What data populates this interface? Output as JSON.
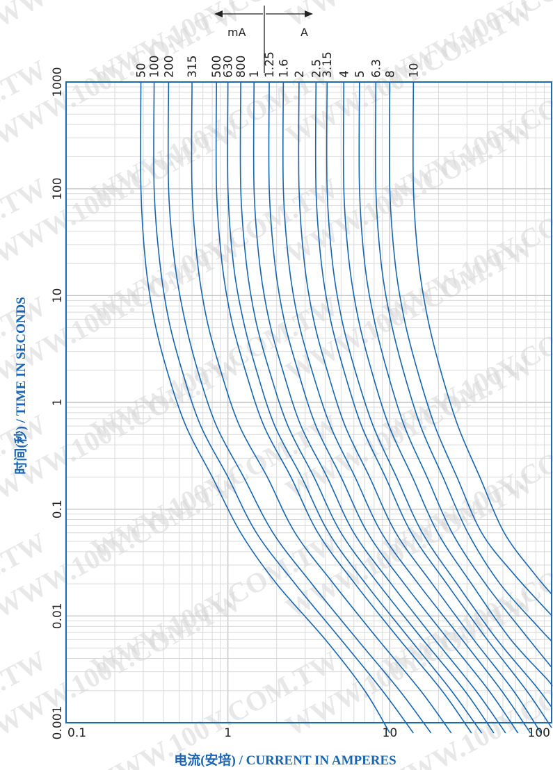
{
  "chart_data": {
    "type": "line",
    "title": "",
    "xlabel": "电流(安培) / CURRENT IN AMPERES",
    "ylabel": "时间(秒) / TIME IN SECONDS",
    "xscale": "log",
    "yscale": "log",
    "xlim": [
      0.1,
      100
    ],
    "ylim": [
      0.001,
      1000
    ],
    "grid": true,
    "x_ticks": [
      "0.1",
      "1",
      "10",
      "100"
    ],
    "y_ticks": [
      "0.001",
      "0.01",
      "0.1",
      "1",
      "10",
      "100",
      "1000"
    ],
    "unit_markers": {
      "left": "mA",
      "right": "A"
    },
    "line_color": "#1565b0",
    "series": [
      {
        "name": "50",
        "points": [
          [
            0.29,
            1000
          ],
          [
            0.29,
            100
          ],
          [
            0.31,
            20
          ],
          [
            0.35,
            6
          ],
          [
            0.42,
            2
          ],
          [
            0.55,
            0.6
          ],
          [
            0.8,
            0.2
          ],
          [
            1.2,
            0.06
          ],
          [
            2.0,
            0.02
          ],
          [
            4.0,
            0.006
          ],
          [
            7.0,
            0.002
          ],
          [
            10.0,
            0.0008
          ]
        ]
      },
      {
        "name": "100",
        "points": [
          [
            0.35,
            1000
          ],
          [
            0.35,
            100
          ],
          [
            0.38,
            20
          ],
          [
            0.43,
            6
          ],
          [
            0.52,
            2
          ],
          [
            0.68,
            0.6
          ],
          [
            1.0,
            0.2
          ],
          [
            1.5,
            0.06
          ],
          [
            2.6,
            0.02
          ],
          [
            5.0,
            0.006
          ],
          [
            9.0,
            0.002
          ],
          [
            14.0,
            0.0008
          ]
        ]
      },
      {
        "name": "200",
        "points": [
          [
            0.43,
            1000
          ],
          [
            0.43,
            100
          ],
          [
            0.47,
            20
          ],
          [
            0.54,
            6
          ],
          [
            0.65,
            2
          ],
          [
            0.85,
            0.6
          ],
          [
            1.25,
            0.2
          ],
          [
            1.9,
            0.06
          ],
          [
            3.3,
            0.02
          ],
          [
            6.3,
            0.006
          ],
          [
            11.5,
            0.002
          ],
          [
            18.0,
            0.0008
          ]
        ]
      },
      {
        "name": "315",
        "points": [
          [
            0.6,
            1000
          ],
          [
            0.6,
            100
          ],
          [
            0.65,
            20
          ],
          [
            0.74,
            6
          ],
          [
            0.9,
            2
          ],
          [
            1.18,
            0.6
          ],
          [
            1.75,
            0.2
          ],
          [
            2.6,
            0.06
          ],
          [
            4.5,
            0.02
          ],
          [
            8.5,
            0.006
          ],
          [
            15.5,
            0.002
          ],
          [
            24.0,
            0.0008
          ]
        ]
      },
      {
        "name": "500",
        "points": [
          [
            0.85,
            1000
          ],
          [
            0.85,
            100
          ],
          [
            0.92,
            20
          ],
          [
            1.05,
            6
          ],
          [
            1.28,
            2
          ],
          [
            1.67,
            0.6
          ],
          [
            2.45,
            0.2
          ],
          [
            3.6,
            0.06
          ],
          [
            6.1,
            0.02
          ],
          [
            11.5,
            0.006
          ],
          [
            21.0,
            0.002
          ],
          [
            32.0,
            0.0008
          ]
        ]
      },
      {
        "name": "630",
        "points": [
          [
            1.0,
            1000
          ],
          [
            1.0,
            100
          ],
          [
            1.08,
            20
          ],
          [
            1.24,
            6
          ],
          [
            1.5,
            2
          ],
          [
            1.95,
            0.6
          ],
          [
            2.85,
            0.2
          ],
          [
            4.2,
            0.06
          ],
          [
            7.1,
            0.02
          ],
          [
            13.4,
            0.006
          ],
          [
            24.0,
            0.002
          ],
          [
            37.0,
            0.0008
          ]
        ]
      },
      {
        "name": "800",
        "points": [
          [
            1.2,
            1000
          ],
          [
            1.2,
            100
          ],
          [
            1.3,
            20
          ],
          [
            1.48,
            6
          ],
          [
            1.8,
            2
          ],
          [
            2.35,
            0.6
          ],
          [
            3.4,
            0.2
          ],
          [
            5.0,
            0.06
          ],
          [
            8.5,
            0.02
          ],
          [
            16.0,
            0.006
          ],
          [
            29.0,
            0.002
          ],
          [
            44.0,
            0.0008
          ]
        ]
      },
      {
        "name": "1",
        "points": [
          [
            1.45,
            1000
          ],
          [
            1.45,
            100
          ],
          [
            1.57,
            20
          ],
          [
            1.79,
            6
          ],
          [
            2.18,
            2
          ],
          [
            2.83,
            0.6
          ],
          [
            4.1,
            0.2
          ],
          [
            6.0,
            0.06
          ],
          [
            10.2,
            0.02
          ],
          [
            19.0,
            0.006
          ],
          [
            34.0,
            0.002
          ],
          [
            52.0,
            0.0008
          ]
        ]
      },
      {
        "name": "1.25",
        "points": [
          [
            1.8,
            1000
          ],
          [
            1.8,
            100
          ],
          [
            1.95,
            20
          ],
          [
            2.22,
            6
          ],
          [
            2.7,
            2
          ],
          [
            3.5,
            0.6
          ],
          [
            5.0,
            0.2
          ],
          [
            7.3,
            0.06
          ],
          [
            12.3,
            0.02
          ],
          [
            23.0,
            0.006
          ],
          [
            41.0,
            0.002
          ],
          [
            62.0,
            0.0008
          ]
        ]
      },
      {
        "name": "1.6",
        "points": [
          [
            2.2,
            1000
          ],
          [
            2.2,
            100
          ],
          [
            2.38,
            20
          ],
          [
            2.71,
            6
          ],
          [
            3.3,
            2
          ],
          [
            4.3,
            0.6
          ],
          [
            6.1,
            0.2
          ],
          [
            8.9,
            0.06
          ],
          [
            15.0,
            0.02
          ],
          [
            28.0,
            0.006
          ],
          [
            49.0,
            0.002
          ],
          [
            74.0,
            0.0008
          ]
        ]
      },
      {
        "name": "2",
        "points": [
          [
            2.75,
            1000
          ],
          [
            2.75,
            100
          ],
          [
            2.97,
            20
          ],
          [
            3.38,
            6
          ],
          [
            4.1,
            2
          ],
          [
            5.3,
            0.6
          ],
          [
            7.5,
            0.2
          ],
          [
            10.9,
            0.06
          ],
          [
            18.3,
            0.02
          ],
          [
            33.0,
            0.006
          ],
          [
            58.0,
            0.002
          ],
          [
            86.0,
            0.0008
          ]
        ]
      },
      {
        "name": "2.5",
        "points": [
          [
            3.5,
            1000
          ],
          [
            3.5,
            100
          ],
          [
            3.78,
            20
          ],
          [
            4.3,
            6
          ],
          [
            5.2,
            2
          ],
          [
            6.7,
            0.6
          ],
          [
            9.4,
            0.2
          ],
          [
            13.6,
            0.06
          ],
          [
            22.5,
            0.02
          ],
          [
            40.0,
            0.006
          ],
          [
            70.0,
            0.002
          ],
          [
            100.0,
            0.0009
          ]
        ]
      },
      {
        "name": "3.15",
        "points": [
          [
            4.1,
            1000
          ],
          [
            4.1,
            100
          ],
          [
            4.43,
            20
          ],
          [
            5.05,
            6
          ],
          [
            6.1,
            2
          ],
          [
            7.9,
            0.6
          ],
          [
            11.0,
            0.2
          ],
          [
            15.9,
            0.06
          ],
          [
            26.0,
            0.02
          ],
          [
            46.0,
            0.006
          ],
          [
            80.0,
            0.0022
          ],
          [
            100.0,
            0.0014
          ]
        ]
      },
      {
        "name": "4",
        "points": [
          [
            5.2,
            1000
          ],
          [
            5.2,
            100
          ],
          [
            5.62,
            20
          ],
          [
            6.4,
            6
          ],
          [
            7.7,
            2
          ],
          [
            9.9,
            0.6
          ],
          [
            13.8,
            0.2
          ],
          [
            19.8,
            0.06
          ],
          [
            32.0,
            0.02
          ],
          [
            56.0,
            0.006
          ],
          [
            95.0,
            0.0025
          ],
          [
            100.0,
            0.0022
          ]
        ]
      },
      {
        "name": "5",
        "points": [
          [
            6.5,
            1000
          ],
          [
            6.5,
            100
          ],
          [
            7.0,
            20
          ],
          [
            8.0,
            6
          ],
          [
            9.6,
            2
          ],
          [
            12.3,
            0.6
          ],
          [
            17.0,
            0.2
          ],
          [
            24.3,
            0.06
          ],
          [
            39.0,
            0.02
          ],
          [
            67.0,
            0.007
          ],
          [
            100.0,
            0.0033
          ]
        ]
      },
      {
        "name": "6.3",
        "points": [
          [
            8.2,
            1000
          ],
          [
            8.2,
            100
          ],
          [
            8.85,
            20
          ],
          [
            10.1,
            6
          ],
          [
            12.1,
            2
          ],
          [
            15.5,
            0.6
          ],
          [
            21.3,
            0.2
          ],
          [
            30.4,
            0.06
          ],
          [
            48.0,
            0.02
          ],
          [
            82.0,
            0.008
          ],
          [
            100.0,
            0.0058
          ]
        ]
      },
      {
        "name": "8",
        "points": [
          [
            10.0,
            1000
          ],
          [
            10.0,
            100
          ],
          [
            10.8,
            20
          ],
          [
            12.3,
            6
          ],
          [
            14.8,
            2
          ],
          [
            19.0,
            0.6
          ],
          [
            26.0,
            0.2
          ],
          [
            37.0,
            0.06
          ],
          [
            58.0,
            0.025
          ],
          [
            95.0,
            0.011
          ],
          [
            100.0,
            0.0102
          ]
        ]
      },
      {
        "name": "10",
        "points": [
          [
            14.0,
            1000
          ],
          [
            14.0,
            100
          ],
          [
            15.1,
            20
          ],
          [
            17.2,
            6
          ],
          [
            20.6,
            2
          ],
          [
            26.4,
            0.6
          ],
          [
            36.0,
            0.2
          ],
          [
            51.0,
            0.06
          ],
          [
            78.0,
            0.025
          ],
          [
            100.0,
            0.016
          ]
        ]
      }
    ]
  }
}
